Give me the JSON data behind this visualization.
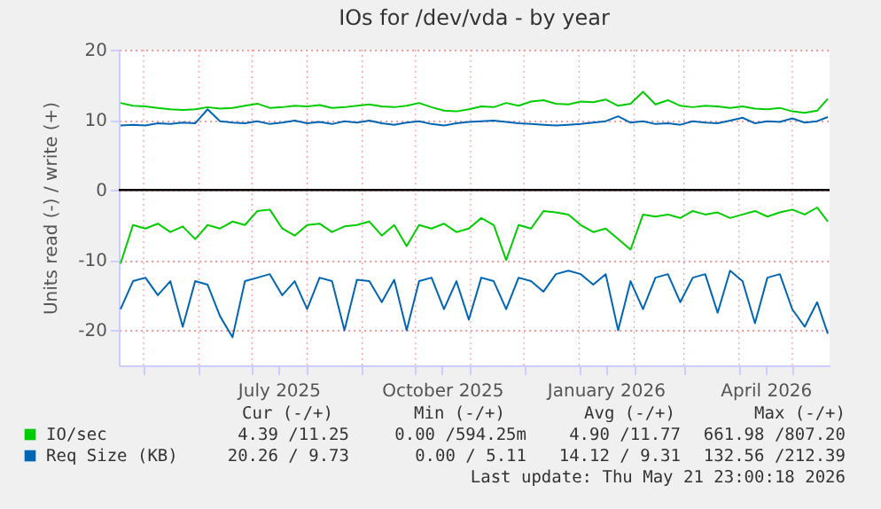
{
  "chart_data": {
    "type": "line",
    "title": "IOs for /dev/vda - by year",
    "ylabel": "Units read (-) / write (+)",
    "x": [
      "2025-04-18",
      "2025-04-25",
      "2025-05-02",
      "2025-05-09",
      "2025-05-16",
      "2025-05-23",
      "2025-05-30",
      "2025-06-06",
      "2025-06-13",
      "2025-06-20",
      "2025-06-27",
      "2025-07-04",
      "2025-07-11",
      "2025-07-18",
      "2025-07-25",
      "2025-08-01",
      "2025-08-08",
      "2025-08-15",
      "2025-08-22",
      "2025-08-29",
      "2025-09-05",
      "2025-09-12",
      "2025-09-19",
      "2025-09-26",
      "2025-10-03",
      "2025-10-10",
      "2025-10-17",
      "2025-10-24",
      "2025-10-31",
      "2025-11-07",
      "2025-11-14",
      "2025-11-21",
      "2025-11-28",
      "2025-12-05",
      "2025-12-12",
      "2025-12-19",
      "2025-12-26",
      "2026-01-02",
      "2026-01-09",
      "2026-01-16",
      "2026-01-23",
      "2026-01-30",
      "2026-02-06",
      "2026-02-13",
      "2026-02-20",
      "2026-02-27",
      "2026-03-06",
      "2026-03-13",
      "2026-03-20",
      "2026-03-27",
      "2026-04-03",
      "2026-04-10",
      "2026-04-17",
      "2026-04-24",
      "2026-05-01",
      "2026-05-08",
      "2026-05-15",
      "2026-05-21"
    ],
    "series": [
      {
        "name": "IO/sec",
        "color": "#00cc00",
        "values": [
          12.4,
          12.0,
          11.9,
          11.7,
          11.5,
          11.4,
          11.5,
          11.8,
          11.6,
          11.7,
          12.0,
          12.3,
          11.7,
          11.8,
          12.0,
          11.9,
          12.1,
          11.7,
          11.8,
          12.0,
          12.2,
          11.9,
          11.8,
          12.0,
          12.4,
          11.8,
          11.3,
          11.2,
          11.5,
          11.9,
          11.8,
          12.4,
          12.0,
          12.6,
          12.8,
          12.3,
          12.2,
          12.6,
          12.5,
          12.9,
          12.0,
          12.3,
          14.0,
          12.2,
          12.8,
          12.0,
          11.8,
          12.0,
          11.9,
          11.7,
          11.9,
          11.6,
          11.5,
          11.7,
          11.2,
          11.0,
          11.3,
          13.0
        ]
      },
      {
        "color": "#00cc00",
        "values": [
          -10.5,
          -5.0,
          -5.5,
          -4.8,
          -6.0,
          -5.2,
          -7.0,
          -5.0,
          -5.5,
          -4.5,
          -5.0,
          -3.0,
          -2.8,
          -5.5,
          -6.5,
          -5.0,
          -4.8,
          -6.0,
          -5.2,
          -5.0,
          -4.5,
          -6.5,
          -5.0,
          -8.0,
          -5.0,
          -5.5,
          -4.8,
          -6.0,
          -5.5,
          -4.0,
          -5.0,
          -10.0,
          -5.0,
          -5.5,
          -3.0,
          -3.2,
          -3.5,
          -5.0,
          -6.0,
          -5.5,
          -7.0,
          -8.5,
          -3.5,
          -3.8,
          -3.5,
          -4.0,
          -3.0,
          -3.5,
          -3.2,
          -4.0,
          -3.5,
          -3.0,
          -3.8,
          -3.2,
          -2.8,
          -3.5,
          -2.5,
          -4.5
        ]
      },
      {
        "name": "Req Size (KB)",
        "color": "#0066b3",
        "values": [
          9.2,
          9.3,
          9.2,
          9.5,
          9.4,
          9.6,
          9.5,
          11.5,
          9.8,
          9.6,
          9.5,
          9.8,
          9.4,
          9.6,
          9.9,
          9.5,
          9.7,
          9.4,
          9.8,
          9.6,
          9.9,
          9.5,
          9.3,
          9.6,
          9.8,
          9.4,
          9.2,
          9.5,
          9.7,
          9.8,
          9.9,
          9.7,
          9.5,
          9.4,
          9.3,
          9.2,
          9.3,
          9.4,
          9.6,
          9.8,
          10.5,
          9.6,
          9.8,
          9.4,
          9.5,
          9.3,
          9.8,
          9.6,
          9.5,
          9.9,
          10.3,
          9.5,
          9.8,
          9.7,
          10.2,
          9.6,
          9.8,
          10.4
        ]
      },
      {
        "color": "#0066b3",
        "values": [
          -17,
          -13,
          -12.5,
          -15,
          -13,
          -19.5,
          -13,
          -13.5,
          -18,
          -21,
          -13,
          -12.5,
          -12,
          -15,
          -13,
          -17,
          -12.5,
          -13,
          -20,
          -12.8,
          -13,
          -16,
          -12.8,
          -20,
          -13,
          -12.5,
          -17,
          -13,
          -18.5,
          -12.5,
          -13,
          -17,
          -12.5,
          -13,
          -14.5,
          -12,
          -11.5,
          -12,
          -13.5,
          -12,
          -20,
          -13,
          -17,
          -12.5,
          -12,
          -16,
          -12.5,
          -12,
          -17.5,
          -11.5,
          -13,
          -19,
          -12.5,
          -12,
          -17,
          -19.5,
          -16,
          -20.5
        ]
      }
    ],
    "xlim": [
      "2025-04-17",
      "2026-05-22"
    ],
    "xticks": [
      {
        "value": "2025-05-01",
        "label": null
      },
      {
        "value": "2025-06-01",
        "label": null
      },
      {
        "value": "2025-07-01",
        "label": null
      },
      {
        "value": "2025-07-16",
        "label": "July 2025"
      },
      {
        "value": "2025-08-01",
        "label": null
      },
      {
        "value": "2025-09-01",
        "label": null
      },
      {
        "value": "2025-10-01",
        "label": null
      },
      {
        "value": "2025-10-16",
        "label": "October 2025"
      },
      {
        "value": "2025-11-01",
        "label": null
      },
      {
        "value": "2025-12-01",
        "label": null
      },
      {
        "value": "2026-01-01",
        "label": null
      },
      {
        "value": "2026-01-16",
        "label": "January 2026"
      },
      {
        "value": "2026-02-01",
        "label": null
      },
      {
        "value": "2026-03-01",
        "label": null
      },
      {
        "value": "2026-04-01",
        "label": null
      },
      {
        "value": "2026-04-16",
        "label": "April 2026"
      },
      {
        "value": "2026-05-01",
        "label": null
      }
    ],
    "ylim": [
      -25,
      20
    ],
    "yticks": [
      -20,
      -10,
      0,
      10,
      20
    ],
    "ref_lines": [
      {
        "axis": "y",
        "value": 0,
        "color": "#000000"
      }
    ],
    "grid": true,
    "legend": "bottom",
    "marker": "none",
    "line_style": "solid",
    "annotations": [
      "Cur (-/+)",
      "Min (-/+)",
      "Avg (-/+)",
      "Max (-/+)",
      "4.39 /11.25",
      "0.00 /594.25m",
      "4.90 /11.77",
      "661.98 /807.20",
      "20.26 / 9.73",
      "0.00 / 5.11",
      "14.12 / 9.31",
      "132.56 /212.39",
      "Last update: Thu May 21 23:00:18 2026"
    ]
  }
}
